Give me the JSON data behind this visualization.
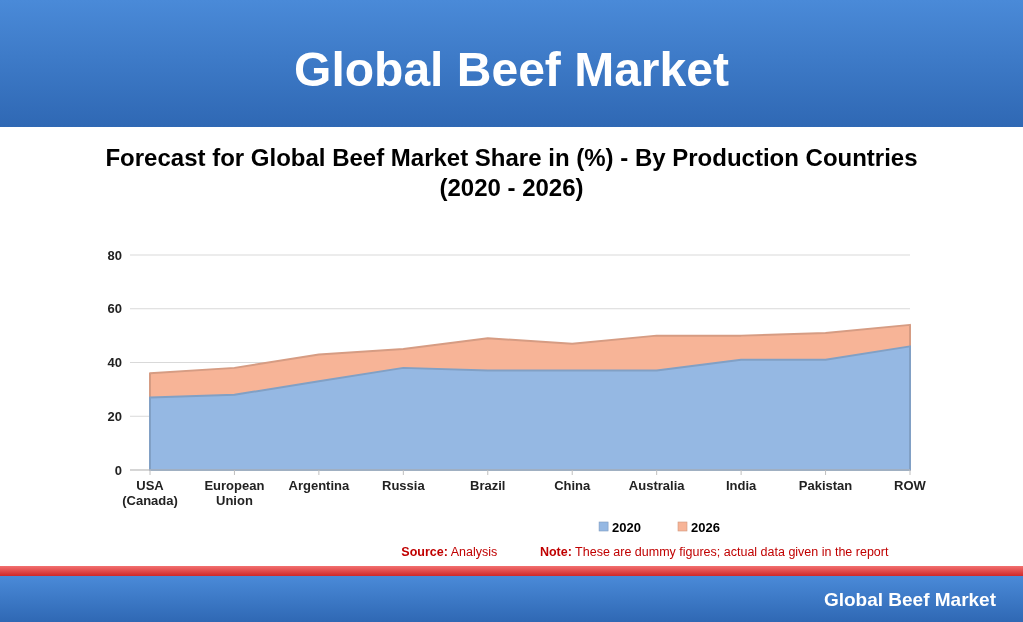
{
  "chart_data": {
    "type": "area",
    "title": "Global Beef Market",
    "subtitle": "Forecast for Global Beef Market Share in (%) - By Production Countries (2020 - 2026)",
    "categories": [
      "USA (Canada)",
      "European Union",
      "Argentina",
      "Russia",
      "Brazil",
      "China",
      "Australia",
      "India",
      "Pakistan",
      "ROW"
    ],
    "series": [
      {
        "name": "2020",
        "color": "#95b8e3",
        "values": [
          27,
          28,
          33,
          38,
          37,
          37,
          37,
          41,
          41,
          46
        ]
      },
      {
        "name": "2026",
        "color": "#f7b497",
        "values": [
          36,
          38,
          43,
          45,
          49,
          47,
          50,
          50,
          51,
          54
        ]
      }
    ],
    "ylim": [
      0,
      80
    ],
    "yticks": [
      0,
      20,
      40,
      60,
      80
    ],
    "grid": "y",
    "legend": "bottom",
    "annotations": [
      "Source: Analysis",
      "Note: These are dummy figures; actual data given in the report",
      "Global Beef Market"
    ]
  }
}
